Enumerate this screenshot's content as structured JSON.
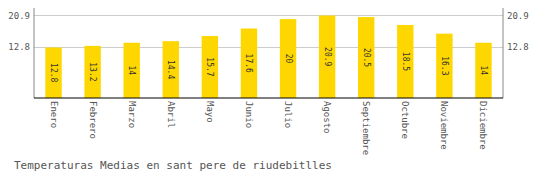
{
  "chart_data": {
    "type": "bar",
    "title": "Temperaturas Medias en sant pere de riudebitlles",
    "categories": [
      "Enero",
      "Febrero",
      "Marzo",
      "Abril",
      "Mayo",
      "Junio",
      "Julio",
      "Agosto",
      "Septiembre",
      "Octubre",
      "Noviembre",
      "Diciembre"
    ],
    "values": [
      12.8,
      13.2,
      14.0,
      14.4,
      15.7,
      17.6,
      20.0,
      20.9,
      20.5,
      18.5,
      16.3,
      14.0
    ],
    "color": "#FFD700",
    "ylim": [
      0,
      22.8
    ],
    "yticks": [
      12.8,
      20.9
    ],
    "grid": true,
    "data_labels": true
  }
}
